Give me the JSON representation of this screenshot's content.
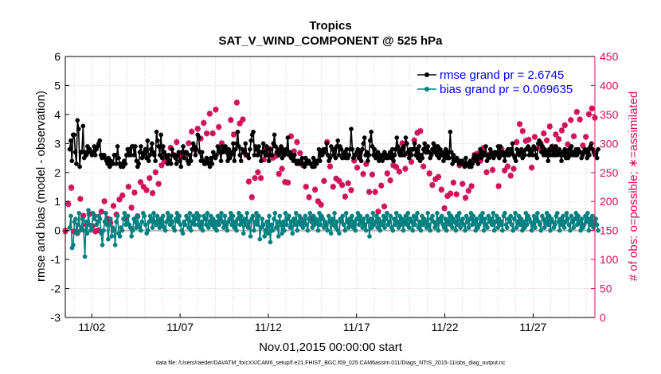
{
  "chart_data": {
    "type": "line",
    "title": "Tropics",
    "subtitle": "SAT_V_WIND_COMPONENT @ 525 hPa",
    "xlabel": "Nov.01,2015 00:00:00 start",
    "ylabel_left": "rmse and bias (model - observation)",
    "ylabel_right": "# of obs: o=possible; ∗=assimilated",
    "ylim_left": [
      -3,
      6
    ],
    "ylim_right": [
      0,
      450
    ],
    "xlim": [
      0.5,
      30.5
    ],
    "yticks_left": [
      "-3",
      "-2",
      "-1",
      "0",
      "1",
      "2",
      "3",
      "4",
      "5",
      "6"
    ],
    "yticks_right": [
      "0",
      "50",
      "100",
      "150",
      "200",
      "250",
      "300",
      "350",
      "400",
      "450"
    ],
    "xticks": [
      {
        "day": 2,
        "label": "11/02"
      },
      {
        "day": 7,
        "label": "11/07"
      },
      {
        "day": 12,
        "label": "11/12"
      },
      {
        "day": 17,
        "label": "11/17"
      },
      {
        "day": 22,
        "label": "11/22"
      },
      {
        "day": 27,
        "label": "11/27"
      }
    ],
    "grid": true,
    "legend_position": "top-right",
    "footer": "data file: /Users/raeder/DAI/ATM_forcXX/CAM6_setup/f.e21.FHIST_BGC.f09_025.CAM6assim.011/Diags_NTrS_2015-11/obs_diag_output.nc",
    "x_start": 0.75,
    "x_step": 0.25,
    "series": [
      {
        "name": "rmse",
        "legend": "rmse grand pr = 2.6745",
        "color": "#000000",
        "values": [
          2.8,
          3.1,
          2.4,
          3.3,
          3.3,
          2.7,
          2.3,
          3.8,
          3.5,
          2.2,
          2.7,
          2.7,
          3.6,
          2.5,
          2.7,
          2.6,
          2.9,
          2.7,
          2.8,
          2.7,
          2.6,
          2.7,
          2.9,
          2.6,
          2.8,
          2.9,
          3.0,
          3.1,
          2.6,
          2.5,
          2.6,
          2.6,
          2.5,
          2.4,
          2.3,
          2.5,
          2.2,
          2.4,
          2.3,
          2.3,
          2.6,
          2.6,
          2.3,
          2.9,
          2.5,
          2.3,
          2.2,
          2.3,
          2.2,
          2.4,
          2.3,
          2.6,
          2.8,
          2.6,
          2.8,
          2.6,
          2.9,
          2.9,
          2.6,
          2.9,
          2.4,
          2.2,
          2.3,
          2.7,
          2.9,
          2.5,
          2.6,
          2.7,
          2.8,
          2.5,
          3.1,
          2.4,
          2.6,
          2.8,
          3.0,
          2.7,
          2.6,
          2.4,
          3.4,
          3.1,
          2.9,
          2.6,
          3.3,
          2.5,
          2.9,
          2.7,
          2.6,
          2.5,
          2.3,
          2.6,
          2.4,
          2.3,
          2.8,
          2.6,
          2.6,
          2.5,
          2.3,
          2.6,
          2.7,
          2.4,
          2.2,
          2.7,
          2.9,
          2.5,
          2.7,
          2.7,
          2.4,
          2.3,
          2.6,
          2.4,
          2.8,
          3.0,
          2.9,
          2.6,
          2.8,
          3.3,
          3.2,
          2.7,
          2.4,
          2.7,
          2.4,
          2.3,
          2.3,
          2.5,
          2.4,
          2.3,
          2.2,
          2.5,
          2.3,
          2.7,
          2.6,
          2.5,
          2.6,
          2.9,
          2.8,
          2.7,
          2.4,
          2.9,
          2.7,
          2.8,
          2.9,
          2.7,
          2.4,
          2.8,
          2.5,
          2.6,
          2.7,
          3.0,
          2.4,
          2.8,
          3.0,
          3.4,
          2.9,
          2.6,
          2.4,
          2.8,
          2.7,
          2.7,
          3.0,
          2.6,
          2.6,
          2.5,
          2.8,
          3.1,
          3.3,
          3.4,
          2.6,
          2.9,
          2.8,
          2.6,
          2.9,
          2.7,
          2.4,
          2.7,
          3.0,
          2.7,
          2.6,
          2.9,
          2.6,
          2.4,
          2.8,
          2.6,
          2.6,
          3.0,
          3.3,
          2.9,
          2.7,
          2.8,
          2.6,
          2.7,
          2.9,
          2.5,
          2.8,
          2.6,
          2.7,
          2.8,
          3.2,
          2.6,
          2.7,
          2.5,
          2.6,
          2.4,
          2.6,
          2.4,
          2.3,
          2.4,
          2.3,
          2.4,
          2.3,
          2.5,
          2.3,
          2.2,
          2.5,
          2.3,
          2.4,
          2.4,
          2.3,
          2.3,
          2.2,
          2.5,
          2.2,
          2.4,
          2.3,
          2.4,
          2.8,
          2.4,
          2.7,
          2.6,
          2.8,
          2.7,
          2.8,
          3.0,
          2.6,
          2.4,
          2.5,
          2.9,
          2.8,
          2.6,
          2.8,
          2.5,
          2.9,
          3.1,
          2.6,
          2.9,
          2.8,
          2.5,
          2.6,
          2.7,
          2.5,
          2.8,
          2.5,
          2.6,
          2.8,
          3.5,
          2.8,
          2.5,
          2.6,
          2.6,
          2.7,
          2.8,
          2.5,
          2.7,
          2.4,
          2.8,
          3.0,
          3.2,
          2.6,
          2.7,
          2.4,
          2.6,
          3.1,
          3.4,
          2.9,
          2.6,
          2.8,
          2.5,
          2.6,
          2.7,
          2.4,
          2.5,
          2.6,
          2.4,
          2.6,
          2.7,
          2.5,
          2.6,
          2.5,
          2.6,
          2.7,
          2.5,
          2.8,
          2.4,
          2.6,
          2.8,
          3.2,
          2.9,
          2.7,
          2.6,
          2.8,
          2.6,
          2.9,
          2.6,
          3.2,
          3.0,
          2.7,
          2.5,
          2.8,
          2.6,
          2.8,
          2.8,
          3.0,
          2.6,
          2.8,
          2.5,
          2.9,
          2.4,
          2.6,
          2.5,
          2.8,
          3.0,
          2.7,
          2.8,
          2.9,
          2.7,
          2.5,
          2.6,
          2.8,
          3.0,
          2.7,
          2.9,
          2.6,
          2.9,
          2.5,
          2.8,
          2.6,
          2.7,
          2.4,
          2.6,
          2.8,
          2.5,
          2.7,
          2.5,
          3.4,
          2.7,
          2.3,
          2.6,
          2.4,
          2.4,
          2.5,
          2.4,
          2.3,
          2.4,
          2.3,
          2.4,
          2.3,
          2.2,
          2.5,
          2.3,
          2.3,
          2.2,
          2.4,
          2.2,
          2.3,
          2.5,
          2.6,
          2.4,
          2.5,
          2.3,
          2.6,
          2.8,
          2.5,
          2.7,
          2.6,
          2.6,
          2.9,
          2.4,
          2.6,
          2.5,
          2.8,
          2.7,
          2.6,
          2.5,
          2.7,
          2.7,
          2.6,
          2.9,
          2.5,
          2.9,
          2.6,
          2.7,
          2.6,
          2.4,
          2.7,
          2.6,
          2.8,
          2.6,
          2.8,
          2.7,
          3.0,
          2.6,
          2.5,
          2.4,
          2.8,
          2.7,
          2.6,
          2.7,
          2.8,
          2.5,
          2.7,
          2.6,
          2.8,
          2.8,
          2.9,
          2.6,
          2.8,
          2.7,
          2.6,
          2.9,
          2.8,
          2.6,
          2.5,
          3.0,
          3.1,
          3.0,
          2.7,
          2.9,
          2.6,
          2.8,
          2.6,
          2.7,
          2.4,
          2.8,
          2.6,
          2.9,
          2.6,
          2.8,
          2.6,
          2.9,
          2.6,
          2.7,
          2.8,
          2.6,
          2.4,
          2.7,
          2.6,
          2.8,
          2.5,
          2.7,
          2.5,
          2.8,
          2.6,
          2.9,
          2.6,
          2.7,
          2.6,
          2.8,
          2.6,
          2.8,
          2.7,
          2.7,
          2.5,
          2.6,
          2.7,
          2.8,
          2.7,
          2.5,
          2.8,
          2.6,
          2.9,
          3.0,
          2.8,
          2.7,
          2.6,
          2.7,
          2.5,
          2.8
        ]
      },
      {
        "name": "bias",
        "legend": "bias grand pr = 0.069635",
        "color": "#008080",
        "values": [
          0.1,
          0.5,
          -0.6,
          -0.5,
          0.3,
          0.4,
          -0.1,
          0.2,
          0.6,
          0.0,
          0.1,
          0.4,
          0.0,
          -0.9,
          0.3,
          -0.1,
          0.7,
          0.2,
          0.0,
          0.1,
          0.6,
          0.4,
          0.5,
          0.2,
          0.3,
          0.5,
          0.4,
          -0.1,
          -0.5,
          0.0,
          0.3,
          0.6,
          0.2,
          -0.3,
          0.2,
          0.4,
          -0.2,
          0.1,
          0.0,
          -0.5,
          0.3,
          0.5,
          -0.1,
          -0.2,
          0.1,
          0.0,
          0.4,
          0.6,
          0.2,
          0.3,
          0.5,
          0.2,
          0.1,
          -0.2,
          0.0,
          0.4,
          0.3,
          0.1,
          0.5,
          0.2,
          0.1,
          0.0,
          0.3,
          0.6,
          0.5,
          0.2,
          -0.1,
          0.0,
          0.3,
          0.5,
          0.4,
          0.1,
          0.6,
          0.3,
          0.2,
          0.5,
          0.3,
          0.1,
          0.4,
          0.2,
          0.5,
          0.1,
          0.0,
          0.3,
          0.6,
          0.4,
          0.2,
          0.5,
          0.3,
          0.1,
          0.0,
          0.4,
          0.6,
          0.3,
          0.5,
          0.2,
          0.0,
          -0.1,
          0.3,
          0.2,
          0.5,
          0.4,
          0.1,
          0.6,
          0.0,
          0.3,
          0.5,
          0.2,
          0.4,
          0.6,
          0.2,
          0.5,
          0.1,
          0.3,
          0.0,
          0.5,
          0.4,
          0.2,
          0.6,
          0.1,
          0.3,
          0.5,
          0.2,
          0.4,
          0.1,
          0.3,
          0.0,
          0.5,
          0.2,
          0.4,
          0.6,
          0.3,
          0.1,
          0.5,
          0.2,
          0.0,
          0.3,
          0.4,
          0.6,
          0.2,
          0.5,
          0.1,
          0.3,
          0.0,
          0.4,
          0.6,
          0.2,
          0.5,
          0.3,
          -0.1,
          0.4,
          0.2,
          0.6,
          0.1,
          0.3,
          -0.2,
          0.4,
          0.5,
          0.0,
          0.3,
          0.6,
          0.2,
          0.5,
          -0.3,
          0.1,
          0.4,
          0.2,
          -0.2,
          0.0,
          0.3,
          -0.1,
          0.5,
          -0.4,
          0.2,
          0.0,
          0.4,
          0.6,
          0.1,
          0.3,
          -0.2,
          0.5,
          0.2,
          -0.1,
          0.3,
          0.0,
          0.6,
          0.2,
          0.4,
          0.5,
          0.1,
          0.3,
          -0.1,
          0.4,
          0.2,
          0.6,
          0.0,
          0.3,
          0.5,
          0.2,
          0.4,
          0.1,
          0.3,
          0.5,
          0.2,
          0.0,
          0.4,
          0.6,
          0.3,
          0.1,
          0.5,
          0.2,
          0.4,
          0.3,
          0.0,
          0.6,
          0.2,
          0.5,
          0.4,
          0.1,
          0.3,
          0.2,
          0.0,
          0.5,
          0.3,
          -0.1,
          0.4,
          0.2,
          0.6,
          0.1,
          0.3,
          0.0,
          -0.1,
          0.4,
          0.3,
          0.5,
          0.2,
          0.0,
          0.6,
          0.3,
          0.1,
          0.4,
          0.2,
          0.5,
          0.1,
          0.3,
          0.0,
          0.4,
          0.6,
          0.2,
          0.5,
          0.3,
          0.1,
          0.4,
          0.2,
          0.0,
          0.5,
          0.3,
          -0.2,
          0.4,
          0.1,
          0.6,
          0.2,
          0.3,
          0.5,
          0.1,
          0.4,
          0.0,
          0.3,
          0.2,
          0.5,
          0.1,
          0.4,
          0.6,
          0.2,
          0.3,
          0.5,
          0.1,
          0.0,
          0.4,
          0.2,
          0.6,
          0.3,
          0.1,
          0.5,
          0.2,
          0.4,
          0.0,
          0.3,
          0.5,
          0.2,
          0.6,
          0.1,
          0.4,
          0.3,
          0.0,
          0.5,
          0.2,
          0.4,
          0.6,
          0.1,
          0.3,
          0.0,
          0.5,
          0.2,
          0.4,
          0.3,
          0.1,
          0.6,
          0.2,
          0.0,
          0.4,
          0.5,
          0.3,
          0.1,
          0.2,
          0.6,
          0.0,
          0.4,
          0.3,
          0.5,
          0.2,
          0.1,
          0.4,
          0.0,
          0.3,
          0.6,
          0.2,
          0.5,
          0.1,
          0.4,
          0.3,
          0.0,
          0.5,
          0.2,
          0.6,
          0.1,
          0.3,
          0.4,
          0.2,
          0.0,
          0.5,
          0.3,
          0.1,
          0.4,
          0.6,
          0.2,
          0.5,
          0.3,
          0.0,
          0.4,
          0.1,
          0.2,
          0.5,
          0.3,
          0.6,
          0.0,
          0.4,
          0.2,
          0.1,
          0.5,
          0.3,
          0.4,
          0.2,
          0.6,
          0.0,
          0.3,
          0.5,
          0.1,
          0.4,
          0.2,
          0.3,
          0.0,
          0.5,
          0.6,
          0.2,
          0.1,
          0.4,
          0.3,
          0.5,
          0.2,
          0.0,
          0.4,
          0.6,
          0.1,
          0.3,
          0.5,
          0.2,
          0.4,
          0.0,
          0.3,
          0.1,
          0.6,
          0.2,
          0.5,
          0.4,
          0.3,
          0.0,
          0.2,
          0.5,
          0.1,
          0.4,
          0.6,
          0.3,
          0.2,
          0.0,
          0.5,
          0.4,
          0.1,
          0.3,
          0.6,
          0.2,
          0.5,
          0.0,
          0.4,
          0.3,
          0.1,
          0.2,
          0.5,
          0.6,
          0.3,
          0.0,
          0.4,
          0.2,
          0.5,
          0.1,
          0.3,
          0.6,
          0.4,
          0.2,
          0.0,
          0.5,
          0.3,
          0.1,
          0.4,
          0.6,
          0.2,
          0.5,
          0.3,
          0.0,
          0.4,
          0.1,
          0.2,
          0.5,
          0.3,
          0.6,
          0.0,
          0.4,
          0.2,
          0.5,
          0.1,
          0.3,
          0.4,
          0.2,
          0.0
        ]
      }
    ],
    "obs_possible": [
      150,
      195,
      223,
      148,
      145,
      205,
      175,
      160,
      178,
      158,
      148,
      150,
      182,
      200,
      170,
      163,
      192,
      178,
      203,
      210,
      170,
      225,
      189,
      215,
      175,
      233,
      225,
      220,
      240,
      214,
      250,
      230,
      262,
      269,
      270,
      293,
      280,
      302,
      278,
      281,
      283,
      300,
      320,
      289,
      325,
      309,
      335,
      317,
      351,
      318,
      359,
      328,
      300,
      291,
      284,
      340,
      315,
      370,
      334,
      341,
      280,
      234,
      207,
      240,
      250,
      240,
      272,
      289,
      290,
      275,
      278,
      248,
      256,
      234,
      232,
      312,
      286,
      302,
      283,
      263,
      225,
      207,
      171,
      220,
      200,
      194,
      235,
      302,
      260,
      225,
      240,
      235,
      228,
      208,
      231,
      220,
      270,
      258,
      285,
      247,
      265,
      216,
      246,
      216,
      183,
      227,
      191,
      248,
      236,
      263,
      259,
      251,
      300,
      256,
      283,
      268,
      305,
      318,
      321,
      260,
      285,
      248,
      228,
      238,
      242,
      220,
      188,
      209,
      214,
      232,
      212,
      262,
      230,
      206,
      218,
      226,
      280,
      282,
      270,
      292,
      250,
      281,
      254,
      281,
      226,
      290,
      253,
      260,
      245,
      256,
      302,
      333,
      321,
      304,
      306,
      258,
      311,
      291,
      300,
      317,
      305,
      329,
      294,
      315,
      307,
      322,
      331,
      298,
      340,
      312,
      354,
      341,
      296,
      311,
      350,
      360,
      344
    ],
    "obs_assimilated": [
      148,
      197,
      225,
      149,
      147,
      204,
      176,
      161,
      179,
      157,
      149,
      151,
      183,
      201,
      171,
      164,
      193,
      177,
      204,
      211,
      171,
      226,
      190,
      216,
      174,
      234,
      226,
      219,
      241,
      215,
      251,
      231,
      263,
      270,
      271,
      292,
      281,
      303,
      279,
      280,
      284,
      301,
      321,
      290,
      326,
      308,
      336,
      318,
      352,
      317,
      358,
      329,
      301,
      292,
      285,
      341,
      316,
      371,
      335,
      342,
      281,
      235,
      208,
      241,
      251,
      241,
      273,
      288,
      291,
      276,
      279,
      247,
      257,
      233,
      233,
      313,
      287,
      303,
      284,
      262,
      226,
      208,
      170,
      221,
      201,
      195,
      236,
      303,
      261,
      226,
      239,
      236,
      229,
      209,
      232,
      219,
      271,
      259,
      286,
      248,
      264,
      217,
      247,
      217,
      182,
      228,
      192,
      249,
      237,
      262,
      260,
      252,
      301,
      257,
      284,
      269,
      306,
      319,
      322,
      261,
      286,
      249,
      229,
      239,
      243,
      221,
      189,
      210,
      213,
      233,
      213,
      263,
      231,
      207,
      219,
      227,
      281,
      283,
      271,
      293,
      251,
      282,
      255,
      282,
      227,
      291,
      254,
      261,
      244,
      257,
      303,
      334,
      322,
      305,
      307,
      259,
      312,
      292,
      301,
      318,
      306,
      330,
      295,
      316,
      308,
      323,
      332,
      299,
      341,
      313,
      355,
      342,
      297,
      312,
      351,
      361,
      345
    ]
  }
}
